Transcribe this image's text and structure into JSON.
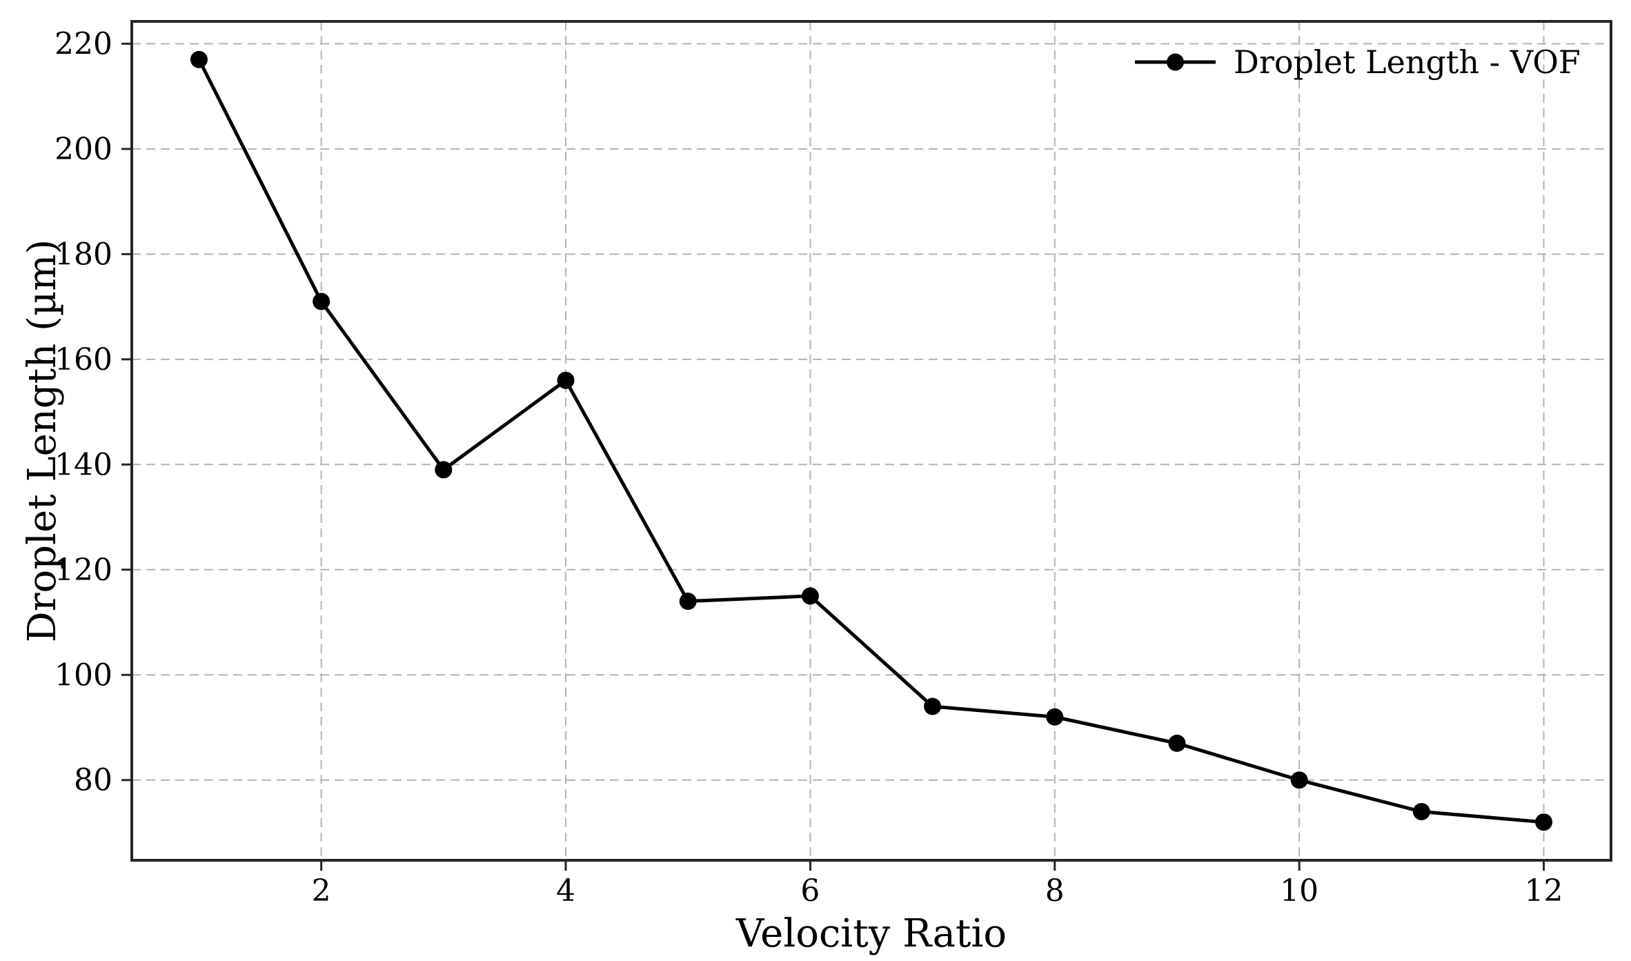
{
  "chart_data": {
    "type": "line",
    "title": "",
    "xlabel": "Velocity Ratio",
    "ylabel": "Droplet Length (µm)",
    "x": [
      1,
      2,
      3,
      4,
      5,
      6,
      7,
      8,
      9,
      10,
      11,
      12
    ],
    "series": [
      {
        "name": "Droplet Length - VOF",
        "values": [
          217,
          171,
          139,
          156,
          114,
          115,
          94,
          92,
          87,
          80,
          74,
          72
        ],
        "color": "#000000",
        "marker": "circle"
      }
    ],
    "xlim": [
      0.45,
      12.55
    ],
    "ylim": [
      64.75,
      224.25
    ],
    "xticks": [
      2,
      4,
      6,
      8,
      10,
      12
    ],
    "yticks": [
      80,
      100,
      120,
      140,
      160,
      180,
      200,
      220
    ],
    "grid": {
      "visible": true,
      "style": "dashed",
      "color": "#b3b3b3"
    },
    "legend": {
      "position": "upper-right",
      "frame": false,
      "entries": [
        "Droplet Length - VOF"
      ]
    },
    "colors": {
      "line": "#000000",
      "marker": "#000000",
      "spine": "#262626",
      "tick": "#262626",
      "text": "#000000",
      "background": "#ffffff"
    }
  }
}
